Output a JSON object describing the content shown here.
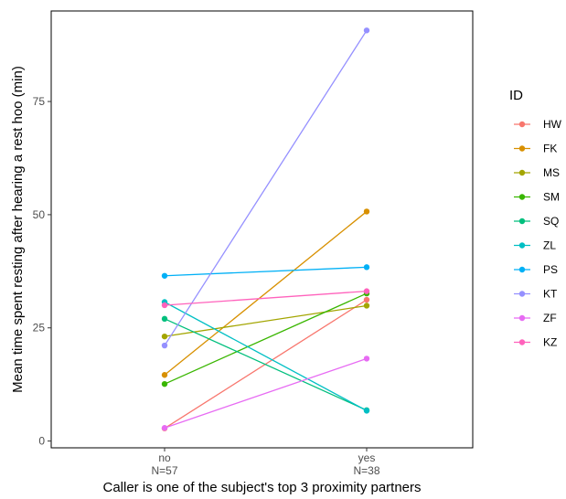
{
  "chart_data": {
    "type": "line",
    "xlabel": "Caller is one of the subject's top 3 proximity partners",
    "ylabel": "Mean time spent resting after hearing a rest hoo (min)",
    "categories": [
      "no",
      "yes"
    ],
    "category_sublabels": [
      "N=57",
      "N=38"
    ],
    "y_ticks": [
      0,
      25,
      50,
      75
    ],
    "ylim": [
      -1.5,
      95
    ],
    "grid": false,
    "legend_title": "ID",
    "legend_position": "right",
    "series": [
      {
        "name": "HW",
        "color": "#F8766D",
        "values": [
          2.8,
          31.2
        ]
      },
      {
        "name": "FK",
        "color": "#D89000",
        "values": [
          14.6,
          50.7
        ]
      },
      {
        "name": "MS",
        "color": "#A3A500",
        "values": [
          23.1,
          29.9
        ]
      },
      {
        "name": "SM",
        "color": "#39B600",
        "values": [
          12.6,
          32.6
        ]
      },
      {
        "name": "SQ",
        "color": "#00BF7D",
        "values": [
          27.0,
          6.8
        ]
      },
      {
        "name": "ZL",
        "color": "#00BFC4",
        "values": [
          30.7,
          6.7
        ]
      },
      {
        "name": "PS",
        "color": "#00B0F6",
        "values": [
          36.5,
          38.4
        ]
      },
      {
        "name": "KT",
        "color": "#9590FF",
        "values": [
          21.1,
          90.7
        ]
      },
      {
        "name": "ZF",
        "color": "#E76BF3",
        "values": [
          2.9,
          18.2
        ]
      },
      {
        "name": "KZ",
        "color": "#FF62BC",
        "values": [
          30.0,
          33.1
        ]
      }
    ]
  }
}
